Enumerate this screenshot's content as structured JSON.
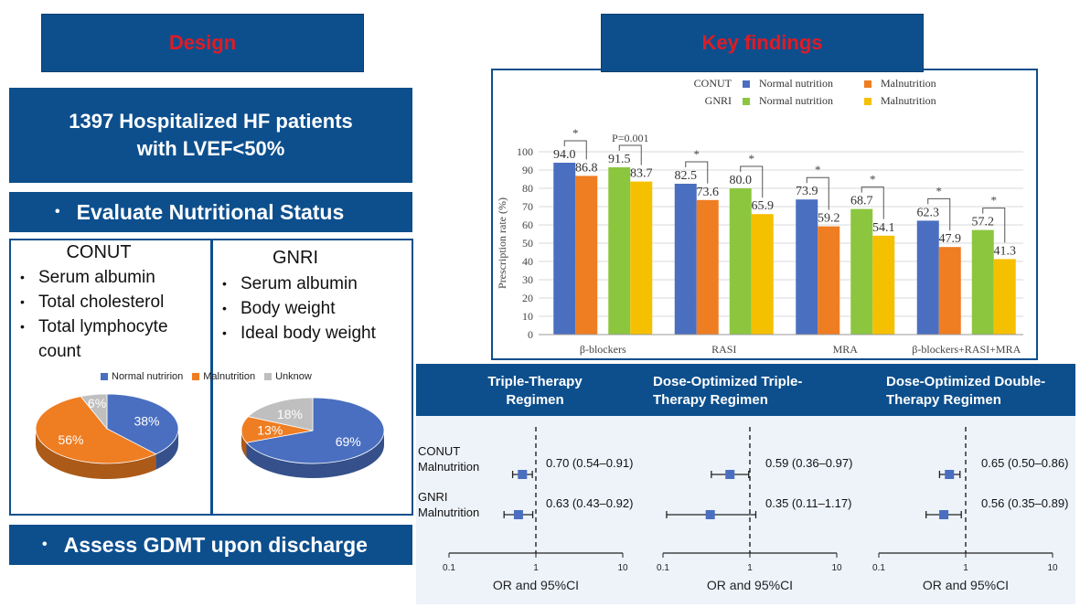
{
  "left": {
    "design_label": "Design",
    "population_line1": "1397 Hospitalized HF patients",
    "population_line2": "with LVEF<50%",
    "evaluate_label": "Evaluate Nutritional Status",
    "assess_label": "Assess GDMT upon discharge",
    "conut": {
      "title": "CONUT",
      "items": [
        "Serum albumin",
        "Total cholesterol",
        "Total lymphocyte count"
      ]
    },
    "gnri": {
      "title": "GNRI",
      "items": [
        "Serum albumin",
        "Body weight",
        "Ideal body weight"
      ]
    },
    "pie_legend": [
      "Normal nutririon",
      "Malnutrition",
      "Unknow"
    ],
    "pie_colors": [
      "#4a6fc0",
      "#ef7d22",
      "#bfbfbf"
    ]
  },
  "right": {
    "key_findings_label": "Key findings",
    "bar_legend": {
      "conut_label": "CONUT",
      "gnri_label": "GNRI",
      "normal_label": "Normal nutrition",
      "malnutrition_label": "Malnutrition"
    },
    "forest_headers": [
      [
        "Triple-Therapy",
        "Regimen"
      ],
      [
        "Dose-Optimized Triple-",
        "Therapy Regimen"
      ],
      [
        "Dose-Optimized Double-",
        "Therapy Regimen"
      ]
    ],
    "forest_row_labels": {
      "conut_l1": "CONUT",
      "conut_l2": "Malnutrition",
      "gnri_l1": "GNRI",
      "gnri_l2": "Malnutrition"
    }
  },
  "chart_data": [
    {
      "type": "pie",
      "title": "CONUT",
      "labels": [
        "Normal nutririon",
        "Malnutrition",
        "Unknow"
      ],
      "values": [
        38,
        56,
        6
      ],
      "value_labels": [
        "38%",
        "56%",
        "6%"
      ]
    },
    {
      "type": "pie",
      "title": "GNRI",
      "labels": [
        "Normal nutririon",
        "Malnutrition",
        "Unknow"
      ],
      "values": [
        69,
        13,
        18
      ],
      "value_labels": [
        "69%",
        "13%",
        "18%"
      ]
    },
    {
      "type": "bar",
      "categories": [
        "β-blockers",
        "RASI",
        "MRA",
        "β-blockers+RASI+MRA"
      ],
      "series": [
        {
          "name": "CONUT Normal nutrition",
          "color": "#4a6fc0",
          "values": [
            94.0,
            82.5,
            73.9,
            62.3
          ],
          "labels": [
            "94.0",
            "82.5",
            "73.9",
            "62.3"
          ]
        },
        {
          "name": "CONUT Malnutrition",
          "color": "#ef7d22",
          "values": [
            86.8,
            73.6,
            59.2,
            47.9
          ],
          "labels": [
            "86.8",
            "73.6",
            "59.2",
            "47.9"
          ]
        },
        {
          "name": "GNRI Normal nutrition",
          "color": "#8cc63f",
          "values": [
            91.5,
            80.0,
            68.7,
            57.2
          ],
          "labels": [
            "91.5",
            "80.0",
            "68.7",
            "57.2"
          ]
        },
        {
          "name": "GNRI Malnutrition",
          "color": "#f5c000",
          "values": [
            83.7,
            65.9,
            54.1,
            41.3
          ],
          "labels": [
            "83.7",
            "65.9",
            "54.1",
            "41.3"
          ]
        }
      ],
      "ylabel": "Prescription rate (%)",
      "ylim": [
        0,
        100
      ],
      "yticks": [
        "0",
        "10",
        "20",
        "30",
        "40",
        "50",
        "60",
        "70",
        "80",
        "90",
        "100"
      ],
      "annotations": [
        {
          "category": 0,
          "pair": "conut",
          "text": "*"
        },
        {
          "category": 0,
          "pair": "gnri",
          "text": "P=0.001"
        },
        {
          "category": 1,
          "pair": "conut",
          "text": "*"
        },
        {
          "category": 1,
          "pair": "gnri",
          "text": "*"
        },
        {
          "category": 2,
          "pair": "conut",
          "text": "*"
        },
        {
          "category": 2,
          "pair": "gnri",
          "text": "*"
        },
        {
          "category": 3,
          "pair": "conut",
          "text": "*"
        },
        {
          "category": 3,
          "pair": "gnri",
          "text": "*"
        }
      ]
    },
    {
      "type": "forest",
      "xlabel": "OR and 95%CI",
      "xscale": "log",
      "xticks": [
        "0.1",
        "1",
        "10"
      ],
      "panels": [
        {
          "title": "Triple-Therapy Regimen",
          "rows": [
            {
              "label": "CONUT Malnutrition",
              "or": 0.7,
              "lo": 0.54,
              "hi": 0.91,
              "text": "0.70 (0.54–0.91)"
            },
            {
              "label": "GNRI Malnutrition",
              "or": 0.63,
              "lo": 0.43,
              "hi": 0.92,
              "text": "0.63 (0.43–0.92)"
            }
          ]
        },
        {
          "title": "Dose-Optimized Triple-Therapy Regimen",
          "rows": [
            {
              "label": "CONUT Malnutrition",
              "or": 0.59,
              "lo": 0.36,
              "hi": 0.97,
              "text": "0.59 (0.36–0.97)"
            },
            {
              "label": "GNRI Malnutrition",
              "or": 0.35,
              "lo": 0.11,
              "hi": 1.17,
              "text": "0.35 (0.11–1.17)"
            }
          ]
        },
        {
          "title": "Dose-Optimized Double-Therapy Regimen",
          "rows": [
            {
              "label": "CONUT Malnutrition",
              "or": 0.65,
              "lo": 0.5,
              "hi": 0.86,
              "text": "0.65 (0.50–0.86)"
            },
            {
              "label": "GNRI Malnutrition",
              "or": 0.56,
              "lo": 0.35,
              "hi": 0.89,
              "text": "0.56 (0.35–0.89)"
            }
          ]
        }
      ]
    }
  ]
}
